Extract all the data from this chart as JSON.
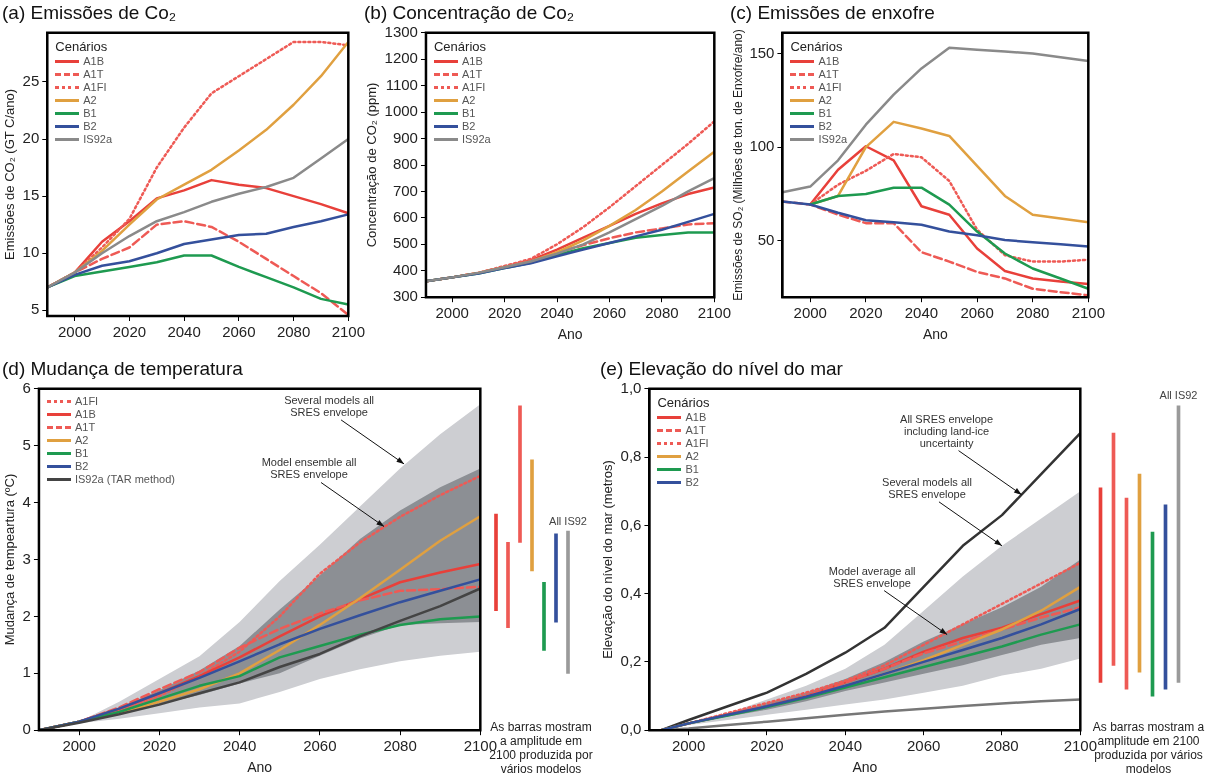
{
  "chart_data": [
    {
      "type": "line",
      "title": "(a) Emissões de Co₂",
      "ylabel": "Emissões de CO₂ (GT C/ano)",
      "legend": "top left",
      "legend_title": "Cenários",
      "x": [
        1990,
        2000,
        2010,
        2020,
        2030,
        2040,
        2050,
        2060,
        2070,
        2080,
        2090,
        2100
      ],
      "xlim": [
        1990,
        2100
      ],
      "xticks": [
        2000,
        2020,
        2040,
        2060,
        2080,
        2100
      ],
      "ylim": [
        4.5,
        29.3
      ],
      "yticks": [
        5,
        10,
        15,
        20,
        25
      ],
      "series": [
        {
          "name": "A1B",
          "color": "#e8403a",
          "line_style": "solid",
          "values": [
            7.0,
            8.3,
            11.0,
            12.8,
            14.8,
            15.5,
            16.4,
            16.0,
            15.7,
            15.0,
            14.3,
            13.5
          ]
        },
        {
          "name": "A1T",
          "color": "#ee5a55",
          "line_style": "dashed",
          "values": [
            7.0,
            8.3,
            9.5,
            10.5,
            12.5,
            12.8,
            12.3,
            11.0,
            9.5,
            8.0,
            6.5,
            4.6
          ]
        },
        {
          "name": "A1FI",
          "color": "#ee5a55",
          "line_style": "dotted",
          "values": [
            7.0,
            8.3,
            10.5,
            13.0,
            17.5,
            21.0,
            24.0,
            25.5,
            27.0,
            28.5,
            28.5,
            28.2
          ]
        },
        {
          "name": "A2",
          "color": "#e0a040",
          "line_style": "solid",
          "values": [
            7.0,
            8.3,
            10.2,
            12.5,
            14.7,
            16.0,
            17.3,
            19.0,
            20.8,
            23.0,
            25.5,
            28.5
          ]
        },
        {
          "name": "B1",
          "color": "#1e9a50",
          "line_style": "solid",
          "values": [
            7.0,
            8.0,
            8.4,
            8.8,
            9.2,
            9.8,
            9.8,
            8.8,
            7.9,
            7.0,
            6.0,
            5.5
          ]
        },
        {
          "name": "B2",
          "color": "#34509c",
          "line_style": "solid",
          "values": [
            7.0,
            8.1,
            8.9,
            9.3,
            10.0,
            10.8,
            11.2,
            11.6,
            11.7,
            12.3,
            12.8,
            13.4
          ]
        },
        {
          "name": "IS92a",
          "color": "#8a8a8a",
          "line_style": "solid",
          "values": [
            7.0,
            8.3,
            10.0,
            11.5,
            12.8,
            13.6,
            14.5,
            15.2,
            15.8,
            16.6,
            18.3,
            20.0
          ]
        }
      ]
    },
    {
      "type": "line",
      "title": "(b) Concentração de Co₂",
      "xlabel": "Ano",
      "ylabel": "Concentração de CO₂ (ppm)",
      "legend": "top left",
      "legend_title": "Cenários",
      "x": [
        1990,
        2000,
        2010,
        2020,
        2030,
        2040,
        2050,
        2060,
        2070,
        2080,
        2090,
        2100
      ],
      "xlim": [
        1990,
        2100
      ],
      "xticks": [
        2000,
        2020,
        2040,
        2060,
        2080,
        2100
      ],
      "ylim": [
        300,
        1300
      ],
      "yticks": [
        300,
        400,
        500,
        600,
        700,
        800,
        900,
        1000,
        1100,
        1200,
        1300
      ],
      "series": [
        {
          "name": "A1B",
          "color": "#e8403a",
          "line_style": "solid",
          "values": [
            360,
            375,
            392,
            415,
            440,
            480,
            525,
            570,
            615,
            655,
            690,
            715
          ]
        },
        {
          "name": "A1T",
          "color": "#ee5a55",
          "line_style": "dashed",
          "values": [
            360,
            375,
            392,
            415,
            437,
            468,
            497,
            523,
            545,
            560,
            575,
            580
          ]
        },
        {
          "name": "A1FI",
          "color": "#ee5a55",
          "line_style": "dotted",
          "values": [
            360,
            375,
            392,
            418,
            445,
            500,
            565,
            640,
            720,
            800,
            880,
            965
          ]
        },
        {
          "name": "A2",
          "color": "#e0a040",
          "line_style": "solid",
          "values": [
            360,
            375,
            392,
            413,
            435,
            470,
            515,
            570,
            630,
            700,
            775,
            850
          ]
        },
        {
          "name": "B1",
          "color": "#1e9a50",
          "line_style": "solid",
          "values": [
            360,
            375,
            390,
            410,
            430,
            460,
            485,
            505,
            525,
            535,
            545,
            545
          ]
        },
        {
          "name": "B2",
          "color": "#34509c",
          "line_style": "solid",
          "values": [
            360,
            375,
            390,
            410,
            428,
            455,
            480,
            505,
            530,
            555,
            585,
            615
          ]
        },
        {
          "name": "IS92a",
          "color": "#8a8a8a",
          "line_style": "solid",
          "values": [
            360,
            375,
            392,
            413,
            435,
            465,
            500,
            545,
            595,
            645,
            700,
            750
          ]
        }
      ]
    },
    {
      "type": "line",
      "title": "(c) Emissões de enxofre",
      "xlabel": "Ano",
      "ylabel": "Emissões de SO₂ (Milhões de ton. de Enxofre/ano)",
      "legend": "top left",
      "legend_title": "Cenários",
      "x": [
        1990,
        2000,
        2010,
        2020,
        2030,
        2040,
        2050,
        2060,
        2070,
        2080,
        2090,
        2100
      ],
      "xlim": [
        1990,
        2100
      ],
      "xticks": [
        2000,
        2020,
        2040,
        2060,
        2080,
        2100
      ],
      "ylim": [
        20,
        161
      ],
      "yticks": [
        50,
        100,
        150
      ],
      "series": [
        {
          "name": "A1B",
          "color": "#e8403a",
          "line_style": "solid",
          "values": [
            null,
            69.4,
            88,
            100.5,
            93,
            68.5,
            64,
            46,
            34,
            30,
            28.4,
            27
          ]
        },
        {
          "name": "A1T",
          "color": "#ee5a55",
          "line_style": "dashed",
          "values": [
            71,
            69.4,
            64,
            59.5,
            59.5,
            44,
            39,
            33.5,
            30,
            24.5,
            22.7,
            21
          ]
        },
        {
          "name": "A1FI",
          "color": "#ee5a55",
          "line_style": "dotted",
          "values": [
            null,
            69.4,
            80,
            87.4,
            96.4,
            94.6,
            82,
            56,
            42.4,
            39,
            39,
            40
          ]
        },
        {
          "name": "A2",
          "color": "#e0a040",
          "line_style": "solid",
          "values": [
            null,
            69.4,
            74,
            100,
            113.5,
            110,
            106,
            90,
            74,
            64,
            62,
            60
          ]
        },
        {
          "name": "B1",
          "color": "#1e9a50",
          "line_style": "solid",
          "values": [
            null,
            69.4,
            74,
            75,
            78.4,
            78.4,
            69.4,
            55,
            43.3,
            35.3,
            30,
            24.5
          ]
        },
        {
          "name": "B2",
          "color": "#34509c",
          "line_style": "solid",
          "values": [
            71,
            69.4,
            65,
            61,
            60,
            58.6,
            55,
            53,
            50.5,
            49.3,
            48.2,
            47
          ]
        },
        {
          "name": "IS92a",
          "color": "#8a8a8a",
          "line_style": "solid",
          "values": [
            76,
            79,
            93,
            112,
            128,
            142,
            153,
            152,
            151,
            150,
            148,
            146
          ]
        }
      ]
    },
    {
      "type": "line",
      "title": "(d) Mudança de temperatura",
      "xlabel": "Ano",
      "ylabel": "Mudança de tempeartura (ºC)",
      "legend": "top left",
      "x": [
        1990,
        2000,
        2010,
        2020,
        2030,
        2040,
        2050,
        2060,
        2070,
        2080,
        2090,
        2100
      ],
      "xlim": [
        1990,
        2100
      ],
      "xticks": [
        2000,
        2020,
        2040,
        2060,
        2080,
        2100
      ],
      "ylim": [
        0,
        6
      ],
      "yticks": [
        0,
        1,
        2,
        3,
        4,
        5,
        6
      ],
      "annotations": [
        {
          "text": "Several models all SRES envelope",
          "x": 2081,
          "y": 4.68
        },
        {
          "text": "Model ensemble all SRES envelope",
          "x": 2076,
          "y": 3.58
        }
      ],
      "series": [
        {
          "type": "area",
          "color": "#cdced2",
          "values": [
            null,
            null,
            null,
            null,
            null,
            null,
            null,
            null,
            null,
            null,
            null,
            null
          ],
          "lower": [
            0,
            0.12,
            0.2,
            0.3,
            0.4,
            0.47,
            0.67,
            0.9,
            1.07,
            1.21,
            1.31,
            1.38
          ],
          "upper": [
            0,
            0.15,
            0.5,
            0.9,
            1.3,
            1.9,
            2.62,
            3.26,
            3.93,
            4.6,
            5.2,
            5.73
          ]
        },
        {
          "type": "area",
          "color": "#8c8f94",
          "values": [
            null,
            null,
            null,
            null,
            null,
            null,
            null,
            null,
            null,
            null,
            null,
            null
          ],
          "lower": [
            0,
            0.14,
            0.3,
            0.45,
            0.62,
            0.82,
            1.0,
            1.31,
            1.61,
            1.85,
            1.88,
            1.9
          ],
          "upper": [
            0,
            0.15,
            0.4,
            0.7,
            1.05,
            1.48,
            2.12,
            2.72,
            3.36,
            3.86,
            4.27,
            4.6
          ]
        },
        {
          "name": "A1FI",
          "color": "#ee5a55",
          "line_style": "dotted",
          "values": [
            0,
            0.15,
            0.35,
            0.6,
            0.95,
            1.38,
            2.0,
            2.75,
            3.3,
            3.75,
            4.13,
            4.47
          ]
        },
        {
          "name": "A1B",
          "color": "#e8403a",
          "line_style": "solid",
          "values": [
            0,
            0.15,
            0.38,
            0.65,
            0.95,
            1.28,
            1.65,
            2.0,
            2.3,
            2.6,
            2.77,
            2.92
          ]
        },
        {
          "name": "A1T",
          "color": "#ee5a55",
          "line_style": "dashed",
          "values": [
            0,
            0.15,
            0.4,
            0.72,
            1.02,
            1.45,
            1.78,
            2.05,
            2.28,
            2.45,
            2.48,
            2.52
          ]
        },
        {
          "name": "A2",
          "color": "#e0a040",
          "line_style": "solid",
          "values": [
            0,
            0.15,
            0.3,
            0.5,
            0.72,
            1.0,
            1.41,
            1.85,
            2.32,
            2.82,
            3.33,
            3.76
          ]
        },
        {
          "name": "B1",
          "color": "#1e9a50",
          "line_style": "solid",
          "values": [
            0,
            0.15,
            0.32,
            0.55,
            0.78,
            0.95,
            1.28,
            1.48,
            1.68,
            1.85,
            1.95,
            2.0
          ]
        },
        {
          "name": "B2",
          "color": "#34509c",
          "line_style": "solid",
          "values": [
            0,
            0.15,
            0.38,
            0.65,
            0.92,
            1.21,
            1.51,
            1.78,
            2.02,
            2.25,
            2.45,
            2.65
          ]
        },
        {
          "name": "IS92a (TAR method)",
          "color": "#444444",
          "line_style": "solid",
          "values": [
            0,
            0.13,
            0.28,
            0.45,
            0.65,
            0.84,
            1.11,
            1.34,
            1.65,
            1.92,
            2.18,
            2.49
          ]
        }
      ]
    },
    {
      "type": "bar",
      "categories": [
        null,
        null,
        null,
        null,
        null,
        null,
        "All IS92"
      ],
      "base": [
        2.1,
        1.8,
        3.3,
        2.8,
        1.4,
        1.9,
        1.0
      ],
      "values": [
        1.7,
        1.5,
        2.4,
        1.95,
        1.2,
        1.55,
        2.5
      ],
      "colors": [
        "#e8403a",
        "#ee5a55",
        "#ee5a55",
        "#e0a040",
        "#1e9a50",
        "#34509c",
        "#9a9a9a"
      ],
      "ylim": [
        0,
        6
      ],
      "yticks": [
        0,
        1,
        2,
        3,
        4,
        5,
        6
      ],
      "tick_labels": false,
      "annotations": [
        "As barras mostram a amplitude em 2100 produzida por vários modelos"
      ]
    },
    {
      "type": "line",
      "title": "(e) Elevação do nível do mar",
      "xlabel": "Ano",
      "ylabel": "Elevação do nível do mar (metros)",
      "legend": "top left",
      "legend_title": "Cenários",
      "x": [
        1993,
        2000,
        2010,
        2020,
        2030,
        2040,
        2050,
        2060,
        2070,
        2080,
        2090,
        2100
      ],
      "xlim": [
        1990,
        2100
      ],
      "xticks": [
        2000,
        2020,
        2040,
        2060,
        2080,
        2100
      ],
      "ylim": [
        0,
        1.0
      ],
      "yticks": [
        {
          "value": 0,
          "label": "0,0"
        },
        {
          "value": 0.2,
          "label": "0,2"
        },
        {
          "value": 0.4,
          "label": "0,4"
        },
        {
          "value": 0.6,
          "label": "0,6"
        },
        {
          "value": 0.8,
          "label": "0,8"
        },
        {
          "value": 1.0,
          "label": "1,0"
        }
      ],
      "annotations": [
        {
          "text": "All SRES envelope including land-ice uncertainty",
          "x": 2085,
          "y": 0.69
        },
        {
          "text": "Several models all SRES envelope",
          "x": 2080,
          "y": 0.54
        },
        {
          "text": "Model average all SRES envelope",
          "x": 2066,
          "y": 0.28
        }
      ],
      "series": [
        {
          "type": "area",
          "color": "#cdced2",
          "values": [
            null,
            null,
            null,
            null,
            null,
            null,
            null,
            null,
            null,
            null,
            null,
            null
          ],
          "lower": [
            0,
            0.015,
            0.03,
            0.045,
            0.06,
            0.075,
            0.09,
            0.11,
            0.13,
            0.16,
            0.18,
            0.21
          ],
          "upper": [
            0,
            0.02,
            0.05,
            0.09,
            0.13,
            0.18,
            0.25,
            0.35,
            0.45,
            0.54,
            0.62,
            0.7
          ]
        },
        {
          "type": "area",
          "color": "#8c8f94",
          "values": [
            null,
            null,
            null,
            null,
            null,
            null,
            null,
            null,
            null,
            null,
            null,
            null
          ],
          "lower": [
            0,
            0.018,
            0.04,
            0.06,
            0.085,
            0.115,
            0.14,
            0.165,
            0.19,
            0.22,
            0.25,
            0.27
          ],
          "upper": [
            0,
            0.02,
            0.05,
            0.08,
            0.11,
            0.15,
            0.2,
            0.26,
            0.31,
            0.36,
            0.42,
            0.5
          ]
        },
        {
          "color": "#333333",
          "line_style": "solid",
          "values": [
            0,
            0.03,
            0.07,
            0.11,
            0.165,
            0.227,
            0.3,
            0.42,
            0.54,
            0.63,
            0.75,
            0.87
          ]
        },
        {
          "color": "#777777",
          "line_style": "solid",
          "values": [
            0,
            0.005,
            0.015,
            0.025,
            0.035,
            0.045,
            0.055,
            0.063,
            0.071,
            0.078,
            0.085,
            0.09
          ]
        },
        {
          "name": "A1B",
          "color": "#e8403a",
          "line_style": "solid",
          "values": [
            0,
            0.02,
            0.045,
            0.07,
            0.1,
            0.14,
            0.18,
            0.23,
            0.27,
            0.3,
            0.34,
            0.38
          ]
        },
        {
          "name": "A1T",
          "color": "#ee5a55",
          "line_style": "dashed",
          "values": [
            0,
            0.02,
            0.045,
            0.07,
            0.1,
            0.14,
            0.18,
            0.225,
            0.26,
            0.295,
            0.33,
            0.36
          ]
        },
        {
          "name": "A1FI",
          "color": "#ee5a55",
          "line_style": "dotted",
          "values": [
            0,
            0.02,
            0.05,
            0.08,
            0.11,
            0.145,
            0.19,
            0.25,
            0.31,
            0.37,
            0.43,
            0.49
          ]
        },
        {
          "name": "A2",
          "color": "#e0a040",
          "line_style": "solid",
          "values": [
            null,
            null,
            null,
            null,
            null,
            0.13,
            0.165,
            0.205,
            0.25,
            0.295,
            0.35,
            0.42
          ]
        },
        {
          "name": "B1",
          "color": "#1e9a50",
          "line_style": "solid",
          "values": [
            0,
            0.02,
            0.043,
            0.068,
            0.095,
            0.125,
            0.155,
            0.185,
            0.215,
            0.245,
            0.28,
            0.31
          ]
        },
        {
          "name": "B2",
          "color": "#34509c",
          "line_style": "solid",
          "values": [
            0,
            0.02,
            0.045,
            0.07,
            0.098,
            0.13,
            0.165,
            0.2,
            0.235,
            0.27,
            0.31,
            0.355
          ]
        }
      ]
    },
    {
      "type": "bar",
      "categories": [
        null,
        null,
        null,
        null,
        null,
        null,
        "All IS92"
      ],
      "base": [
        0.14,
        0.19,
        0.12,
        0.17,
        0.1,
        0.12,
        0.14
      ],
      "values": [
        0.57,
        0.68,
        0.56,
        0.58,
        0.48,
        0.54,
        0.81
      ],
      "colors": [
        "#e8403a",
        "#ee5a55",
        "#ee5a55",
        "#e0a040",
        "#1e9a50",
        "#34509c",
        "#9a9a9a"
      ],
      "ylim": [
        0,
        1.0
      ],
      "tick_labels": false,
      "annotations": [
        "As barras mostram a amplitude em 2100 produzida por vários modelos"
      ]
    }
  ]
}
